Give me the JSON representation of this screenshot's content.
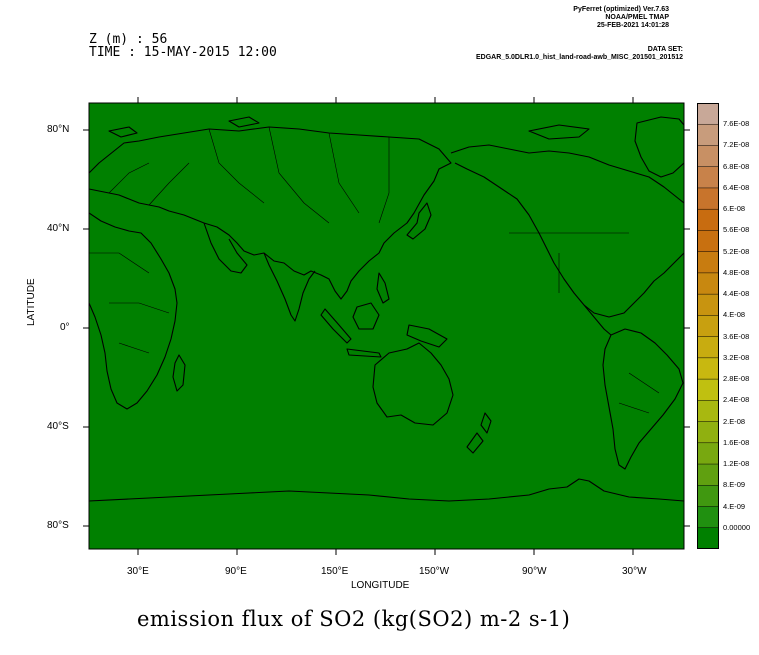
{
  "header": {
    "z_line": "Z (m) : 56",
    "time_line": "TIME : 15-MAY-2015 12:00"
  },
  "meta": {
    "line1": "PyFerret (optimized) Ver.7.63",
    "line2": "NOAA/PMEL TMAP",
    "line3": "25-FEB-2021 14:01:28"
  },
  "dataset": {
    "label": "DATA SET:",
    "name": "EDGAR_5.0DLR1.0_hist_land-road-awb_MISC_201501_201512"
  },
  "map": {
    "fill_color": "#008000",
    "outline_color": "#000000",
    "xlabel": "LONGITUDE",
    "ylabel": "LATITUDE",
    "x_ticks": [
      "30°E",
      "90°E",
      "150°E",
      "150°W",
      "90°W",
      "30°W"
    ],
    "y_ticks": [
      "80°N",
      "40°N",
      "0°",
      "40°S",
      "80°S"
    ]
  },
  "colorbar": {
    "labels": [
      "7.6E-08",
      "7.2E-08",
      "6.8E-08",
      "6.4E-08",
      "6.E-08",
      "5.6E-08",
      "5.2E-08",
      "4.8E-08",
      "4.4E-08",
      "4.E-08",
      "3.6E-08",
      "3.2E-08",
      "2.8E-08",
      "2.4E-08",
      "2.E-08",
      "1.6E-08",
      "1.2E-08",
      "8.E-09",
      "4.E-09",
      "0.00000"
    ],
    "colors": [
      "#c8a898",
      "#c89c7c",
      "#c89064",
      "#c8824a",
      "#c8742c",
      "#c86c10",
      "#c87010",
      "#c87c10",
      "#c88810",
      "#c89410",
      "#c8a010",
      "#c8ac10",
      "#c8b810",
      "#c0c010",
      "#a8b810",
      "#90b010",
      "#78a810",
      "#60a010",
      "#409810",
      "#209010",
      "#008000"
    ]
  },
  "title": "emission flux of SO2 (kg(SO2) m-2 s-1)"
}
